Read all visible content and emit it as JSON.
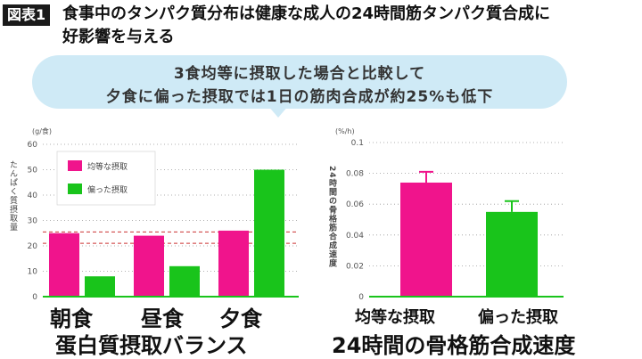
{
  "header": {
    "badge": "図表1",
    "title_line1": "食事中のタンパク質分布は健康な成人の24時間筋タンパク質合成に",
    "title_line2": "好影響を与える"
  },
  "callout": {
    "line1": "3食均等に摂取した場合と比較して",
    "line2": "夕食に偏った摂取では1日の筋肉合成が約25%も低下"
  },
  "colors": {
    "pink": "#f0148c",
    "green": "#19c41b",
    "callout_bg": "#cfeaf6",
    "ref_line": "#cc3333"
  },
  "chart_data": [
    {
      "type": "bar",
      "unit_label": "(g/食)",
      "ylabel": "たんぱく質摂取量",
      "yticks": [
        "0",
        "10",
        "20",
        "30",
        "40",
        "50",
        "60"
      ],
      "ylim": [
        0,
        60
      ],
      "categories": [
        "朝食",
        "昼食",
        "夕食"
      ],
      "series": [
        {
          "name": "均等な摂取",
          "values": [
            25,
            24,
            26
          ]
        },
        {
          "name": "偏った摂取",
          "values": [
            8,
            12,
            50
          ]
        }
      ],
      "reference_lines": [
        25.5,
        21
      ],
      "legend_position": "top-left",
      "title": "蛋白質摂取バランス"
    },
    {
      "type": "bar",
      "unit_label": "(%/h)",
      "ylabel": "24時間の骨格筋合成速度",
      "yticks": [
        "0",
        "0.02",
        "0.04",
        "0.06",
        "0.08",
        "0.1"
      ],
      "ylim": [
        0,
        0.1
      ],
      "categories": [
        "均等な摂取",
        "偏った摂取"
      ],
      "values": [
        0.074,
        0.055
      ],
      "errors": [
        0.007,
        0.007
      ],
      "title": "24時間の骨格筋合成速度"
    }
  ]
}
